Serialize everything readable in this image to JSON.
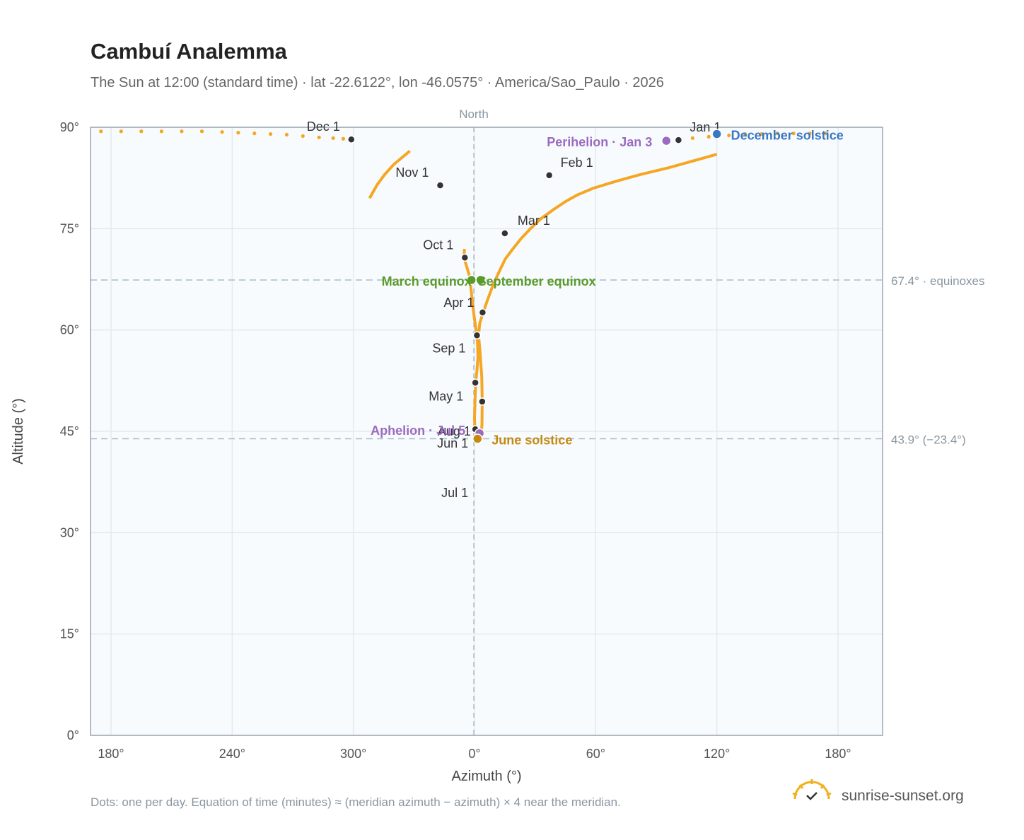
{
  "title": "Cambuí Analemma",
  "subtitle": "The Sun at 12:00 (standard time) · lat -22.6122°, lon -46.0575° · America/Sao_Paulo · 2026",
  "footnote": "Dots: one per day. Equation of time (minutes) ≈ (meridian azimuth − azimuth) × 4 near the meridian.",
  "brand": {
    "name": "sunrise-sunset.org",
    "logo_icon": "sun-check-icon",
    "color": "#f2b01e"
  },
  "colors": {
    "curve": "#f5a623",
    "month_dot": "#333333",
    "equinox": "#5a9a2a",
    "june_solstice": "#c48a10",
    "december_solstice": "#3a78c2",
    "apsis": "#9b6bbf"
  },
  "chart_data": {
    "type": "scatter",
    "xlabel": "Azimuth (°)",
    "ylabel": "Altitude (°)",
    "north_label": "North",
    "xlim": [
      170,
      200
    ],
    "ylim": [
      0,
      90
    ],
    "x_ticks": [
      {
        "value": 180,
        "label": "180°"
      },
      {
        "value": 240,
        "label": "240°"
      },
      {
        "value": 300,
        "label": "300°"
      },
      {
        "value": 360,
        "label": "0°"
      },
      {
        "value": 420,
        "label": "60°"
      },
      {
        "value": 480,
        "label": "120°"
      },
      {
        "value": 540,
        "label": "180°"
      }
    ],
    "y_ticks": [
      {
        "value": 0,
        "label": "0°"
      },
      {
        "value": 15,
        "label": "15°"
      },
      {
        "value": 30,
        "label": "30°"
      },
      {
        "value": 45,
        "label": "45°"
      },
      {
        "value": 60,
        "label": "60°"
      },
      {
        "value": 75,
        "label": "75°"
      },
      {
        "value": 90,
        "label": "90°"
      }
    ],
    "reference_lines": [
      {
        "altitude": 67.4,
        "label": "67.4° · equinoxes"
      },
      {
        "altitude": 43.9,
        "label": "43.9° (−23.4°)"
      }
    ],
    "daily_path": [
      [
        328.0,
        86.5
      ],
      [
        324.0,
        85.5
      ],
      [
        320.0,
        84.5
      ],
      [
        315.5,
        83.0
      ],
      [
        311.8,
        81.5
      ],
      [
        308.0,
        79.5
      ],
      [
        355.0,
        72.0
      ],
      [
        354.8,
        70.6
      ],
      [
        356.0,
        69.5
      ],
      [
        357.5,
        68.0
      ],
      [
        358.3,
        66.0
      ],
      [
        359.0,
        64.0
      ],
      [
        359.8,
        62.0
      ],
      [
        360.8,
        60.0
      ],
      [
        361.5,
        58.0
      ],
      [
        361.7,
        56.0
      ],
      [
        361.2,
        54.0
      ],
      [
        360.6,
        52.2
      ],
      [
        360.3,
        50.0
      ],
      [
        360.0,
        47.0
      ],
      [
        360.2,
        45.2
      ],
      [
        361.2,
        44.3
      ],
      [
        362.5,
        44.0
      ],
      [
        363.3,
        44.6
      ],
      [
        363.7,
        46.0
      ],
      [
        363.8,
        49.5
      ],
      [
        363.6,
        53.0
      ],
      [
        362.8,
        56.5
      ],
      [
        362.0,
        59.2
      ],
      [
        362.6,
        61.0
      ],
      [
        364.3,
        62.6
      ],
      [
        366.5,
        64.5
      ],
      [
        369.0,
        66.5
      ],
      [
        372.0,
        68.5
      ],
      [
        375.2,
        70.5
      ],
      [
        379.0,
        72.0
      ],
      [
        383.0,
        73.5
      ],
      [
        387.7,
        75.0
      ],
      [
        393.0,
        76.5
      ],
      [
        399.0,
        77.8
      ],
      [
        405.0,
        79.0
      ],
      [
        411.0,
        80.0
      ],
      [
        419.0,
        81.0
      ],
      [
        430.0,
        82.0
      ],
      [
        442.0,
        83.0
      ],
      [
        456.0,
        84.0
      ],
      [
        468.0,
        85.0
      ],
      [
        480.0,
        86.0
      ]
    ],
    "month_markers": [
      {
        "label": "Jan 1",
        "az": 461.0,
        "alt": 88.1
      },
      {
        "label": "Feb 1",
        "az": 397.0,
        "alt": 82.9
      },
      {
        "label": "Mar 1",
        "az": 375.0,
        "alt": 74.3
      },
      {
        "label": "Apr 1",
        "az": 364.0,
        "alt": 62.6
      },
      {
        "label": "May 1",
        "az": 361.5,
        "alt": 59.2
      },
      {
        "label": "Jun 1",
        "az": 360.4,
        "alt": 52.2
      },
      {
        "label": "Jul 1",
        "az": 360.4,
        "alt": 45.3
      },
      {
        "label": "Aug 1",
        "az": 363.8,
        "alt": 49.4
      },
      {
        "label": "Sep 1",
        "az": 361.2,
        "alt": 59.2
      },
      {
        "label": "Oct 1",
        "az": 355.2,
        "alt": 70.7
      },
      {
        "label": "Nov 1",
        "az": 343.0,
        "alt": 81.4
      },
      {
        "label": "Dec 1",
        "az": 299.0,
        "alt": 88.2
      }
    ],
    "events": [
      {
        "label": "December solstice",
        "az": 480.0,
        "alt": 89.0,
        "color": "#3a78c2"
      },
      {
        "label": "Perihelion · Jan 3",
        "az": 455.0,
        "alt": 88.0,
        "color": "#9b6bbf"
      },
      {
        "label": "March equinox",
        "az": 358.5,
        "alt": 67.4,
        "color": "#5a9a2a"
      },
      {
        "label": "September equinox",
        "az": 363.0,
        "alt": 67.4,
        "color": "#5a9a2a"
      },
      {
        "label": "Aphelion · Jul 5",
        "az": 362.5,
        "alt": 44.7,
        "color": "#9b6bbf"
      },
      {
        "label": "June solstice",
        "az": 361.5,
        "alt": 43.9,
        "color": "#c48a10"
      }
    ]
  }
}
